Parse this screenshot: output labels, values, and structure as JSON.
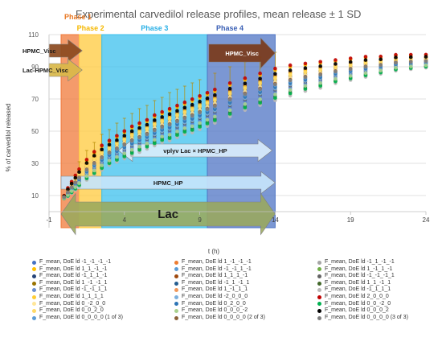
{
  "chart_data": {
    "type": "scatter",
    "title": "Experimental carvedilol release profiles, mean release ± 1 SD",
    "xlabel": "t (h)",
    "ylabel": "% of carvedilol released",
    "xlim": [
      -1,
      24
    ],
    "ylim": [
      -10,
      110
    ],
    "x_ticks": [
      -1,
      4,
      9,
      14,
      19,
      24
    ],
    "x_tick_labels": [
      "-1",
      "4",
      "9",
      "14",
      "19",
      "24"
    ],
    "y_ticks": [
      10,
      30,
      50,
      70,
      90,
      110
    ],
    "y_tick_labels": [
      "10",
      "30",
      "50",
      "70",
      "90",
      "110"
    ],
    "grid": "horizontal",
    "legend_position": "bottom",
    "regions": [
      {
        "label": "Phase 1",
        "x0": -0.2,
        "x1": 1,
        "color": "#f07a3a",
        "label_color": "#e87722"
      },
      {
        "label": "Phase 2",
        "x0": 1,
        "x1": 2.5,
        "color": "#ffc93c",
        "label_color": "#f5b800"
      },
      {
        "label": "Phase 3",
        "x0": 2.5,
        "x1": 9.5,
        "color": "#3cc0ee",
        "label_color": "#2ab0e6"
      },
      {
        "label": "Phase 4",
        "x0": 9.5,
        "x1": 14,
        "color": "#4f74c4",
        "label_color": "#3a5fb5"
      }
    ],
    "annotations": [
      {
        "text": "HPMC_Visc",
        "kind": "arrow-right",
        "x0": -1,
        "x1": 1.2,
        "y0": 96,
        "y1": 104,
        "color": "#8b4a20",
        "outside_label": true
      },
      {
        "text": "Lac-HPMC_Visc",
        "kind": "arrow-right",
        "x0": -1,
        "x1": 1.2,
        "y0": 84,
        "y1": 92,
        "color": "#d9b84a",
        "outside_label": true
      },
      {
        "text": "HPMC_Visc",
        "kind": "arrow-right",
        "x0": 9.6,
        "x1": 14,
        "y0": 93,
        "y1": 104,
        "color": "#7a3a1a",
        "text_color": "#ffffff"
      },
      {
        "text": "vplyv Lac × HPMC_HP",
        "kind": "arrow-both",
        "x0": 3.6,
        "x1": 13.8,
        "y0": 34,
        "y1": 42,
        "color": "#d8ebfb",
        "text_color": "#1a1a1a"
      },
      {
        "text": "HPMC_HP",
        "kind": "arrow-right",
        "x0": -0.2,
        "x1": 14,
        "y0": 14,
        "y1": 22,
        "color": "#c6e4fb",
        "text_color": "#1a1a1a"
      },
      {
        "text": "Lac",
        "kind": "arrow-both",
        "x0": -0.2,
        "x1": 14,
        "y0": -9,
        "y1": 6,
        "color": "#9aa95c",
        "text_color": "#1a1a1a",
        "big": true
      }
    ],
    "time_points": [
      0,
      0.25,
      0.5,
      0.75,
      1,
      1.5,
      2,
      2.5,
      3,
      3.5,
      4,
      4.5,
      5,
      5.5,
      6,
      6.5,
      7,
      7.5,
      8,
      8.5,
      9,
      9.5,
      10,
      11,
      12,
      13,
      14,
      15,
      16,
      17,
      18,
      19,
      20,
      21,
      22,
      23,
      24
    ],
    "profile_min": [
      8,
      9,
      11,
      13,
      15,
      19,
      22,
      25,
      28,
      30,
      32,
      34,
      36,
      38,
      40,
      42,
      43,
      45,
      47,
      48,
      50,
      52,
      54,
      58,
      62,
      65,
      68,
      71,
      74,
      76,
      79,
      81,
      83,
      85,
      87,
      88,
      89
    ],
    "profile_max": [
      10,
      15,
      19,
      23,
      27,
      33,
      38,
      42,
      45,
      48,
      51,
      54,
      56,
      58,
      61,
      63,
      65,
      67,
      69,
      71,
      73,
      75,
      77,
      81,
      84,
      87,
      90,
      92,
      93,
      94,
      95,
      96,
      97,
      97,
      98,
      98,
      98
    ],
    "error_bar": {
      "series": "F_mean, DoE ld 1_1_-1_-1",
      "x": [
        1,
        1.5,
        2,
        2.5,
        3,
        3.5,
        4,
        4.5,
        5,
        5.5,
        6,
        6.5,
        7,
        7.5,
        8,
        8.5,
        9,
        10,
        11,
        12,
        13,
        14
      ],
      "y": [
        27,
        33,
        38,
        42,
        45,
        48,
        51,
        54,
        56,
        58,
        61,
        63,
        65,
        67,
        69,
        71,
        73,
        77,
        81,
        84,
        87,
        90
      ],
      "sd": [
        4,
        5,
        5,
        6,
        6,
        7,
        7,
        7,
        8,
        8,
        8,
        8,
        9,
        9,
        9,
        9,
        9,
        9,
        9,
        9,
        9,
        9
      ]
    },
    "series": [
      {
        "name": "F_mean, DoE ld -1_-1_-1_-1",
        "color": "#4472c4",
        "rank": 0.3
      },
      {
        "name": "F_mean, DoE ld 1_-1_-1_-1",
        "color": "#ed7d31",
        "rank": 0.55
      },
      {
        "name": "F_mean, DoE ld -1_1_-1_-1",
        "color": "#a5a5a5",
        "rank": 0.4
      },
      {
        "name": "F_mean, DoE ld 1_1_-1_-1",
        "color": "#ffc000",
        "rank": 0.9
      },
      {
        "name": "F_mean, DoE ld -1_-1_1_-1",
        "color": "#5b9bd5",
        "rank": 0.2
      },
      {
        "name": "F_mean, DoE ld 1_-1_1_-1",
        "color": "#70ad47",
        "rank": 0.1
      },
      {
        "name": "F_mean, DoE ld -1_1_1_-1",
        "color": "#264478",
        "rank": 0.6
      },
      {
        "name": "F_mean, DoE ld 1_1_1_-1",
        "color": "#9e480e",
        "rank": 0.75
      },
      {
        "name": "F_mean, DoE ld -1_-1_-1_1",
        "color": "#636363",
        "rank": 0.35
      },
      {
        "name": "F_mean, DoE ld 1_-1_-1_1",
        "color": "#997300",
        "rank": 0.65
      },
      {
        "name": "F_mean, DoE ld -1_1_-1_1",
        "color": "#255e91",
        "rank": 0.45
      },
      {
        "name": "F_mean, DoE ld 1_1_-1_1",
        "color": "#43682b",
        "rank": 0.15
      },
      {
        "name": "F_mean, DoE ld -1_-1_1_1",
        "color": "#698ed0",
        "rank": 0.25
      },
      {
        "name": "F_mean, DoE ld 1_-1_1_1",
        "color": "#f1975a",
        "rank": 0.5
      },
      {
        "name": "F_mean, DoE ld -1_1_1_1",
        "color": "#b7b7b7",
        "rank": 0.05
      },
      {
        "name": "F_mean, DoE ld 1_1_1_1",
        "color": "#ffcd33",
        "rank": 0.7
      },
      {
        "name": "F_mean, DoE ld -2_0_0_0",
        "color": "#7cafdd",
        "rank": 0.38
      },
      {
        "name": "F_mean, DoE ld 2_0_0_0",
        "color": "#c00000",
        "rank": 0.95
      },
      {
        "name": "F_mean, DoE ld 0_-2_0_0",
        "color": "#ffe699",
        "rank": 0.58
      },
      {
        "name": "F_mean, DoE ld 0_2_0_0",
        "color": "#2e75b6",
        "rank": 0.42
      },
      {
        "name": "F_mean, DoE ld 0_0_-2_0",
        "color": "#00b050",
        "rank": 0.12
      },
      {
        "name": "F_mean, DoE ld 0_0_2_0",
        "color": "#ffd966",
        "rank": 0.66
      },
      {
        "name": "F_mean, DoE ld 0_0_0_-2",
        "color": "#a9d18e",
        "rank": 0.22
      },
      {
        "name": "F_mean, DoE ld 0_0_0_2",
        "color": "#000000",
        "rank": 0.8
      },
      {
        "name": "F_mean, DoE ld 0_0_0_0 (1 of 3)",
        "color": "#5b9bd5",
        "rank": 0.48
      },
      {
        "name": "F_mean, DoE ld 0_0_0_0 (2 of 3)",
        "color": "#8c6239",
        "rank": 0.52
      },
      {
        "name": "F_mean, DoE ld 0_0_0_0 (3 of 3)",
        "color": "#7f7f7f",
        "rank": 0.5
      }
    ]
  }
}
